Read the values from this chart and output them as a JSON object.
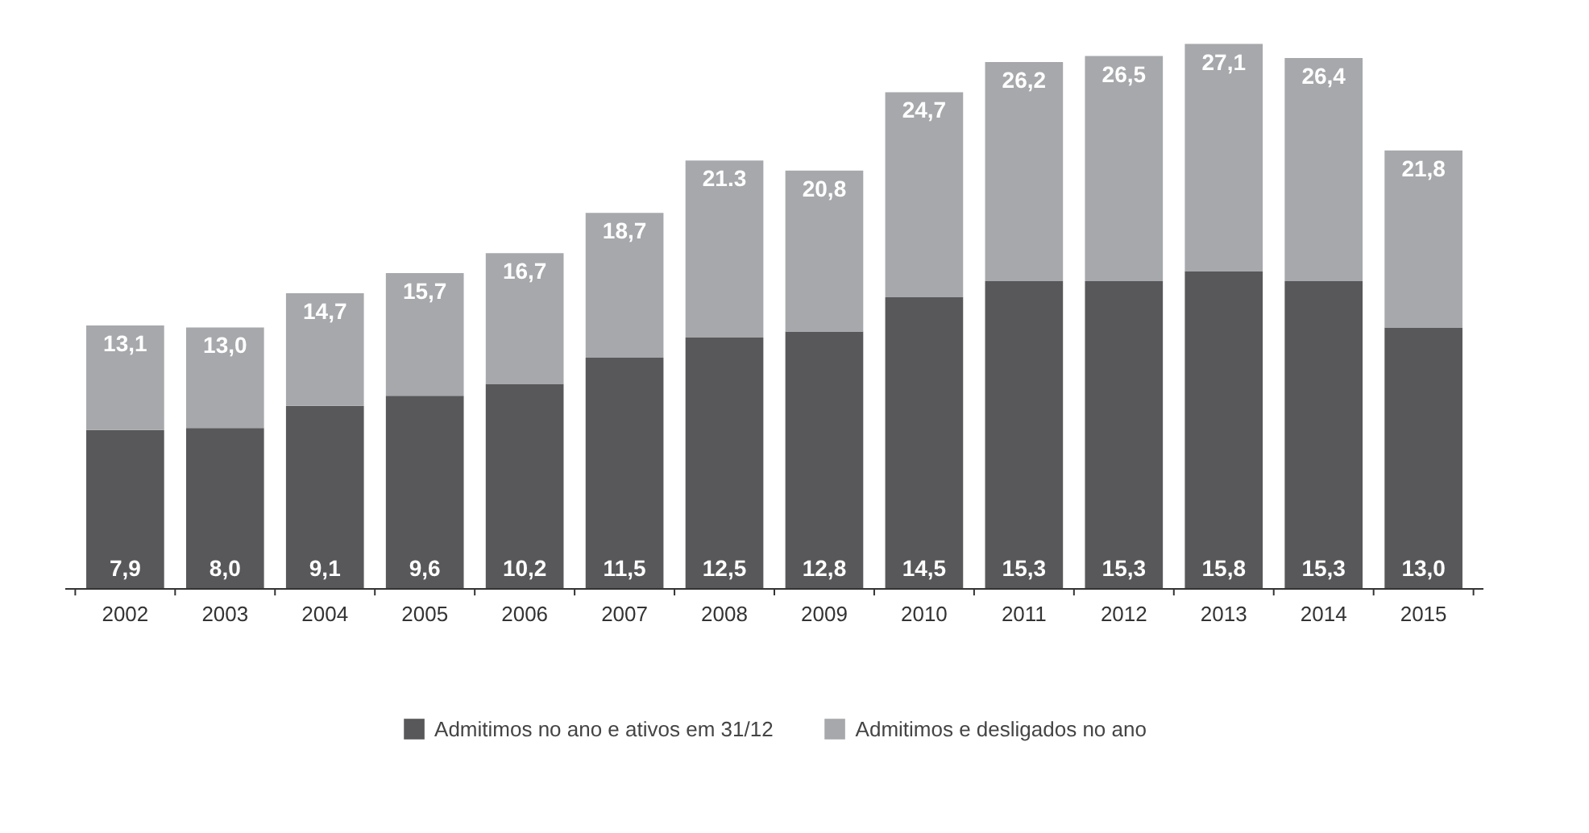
{
  "chart_data": {
    "type": "bar",
    "stacked": true,
    "categories": [
      "2002",
      "2003",
      "2004",
      "2005",
      "2006",
      "2007",
      "2008",
      "2009",
      "2010",
      "2011",
      "2012",
      "2013",
      "2014",
      "2015"
    ],
    "series": [
      {
        "name": "Admitimos no ano e ativos em 31/12",
        "color": "#58585a",
        "values": [
          7.9,
          8.0,
          9.1,
          9.6,
          10.2,
          11.5,
          12.5,
          12.8,
          14.5,
          15.3,
          15.3,
          15.8,
          15.3,
          13.0
        ],
        "value_labels": [
          "7,9",
          "8,0",
          "9,1",
          "9,6",
          "10,2",
          "11,5",
          "12,5",
          "12,8",
          "14,5",
          "15,3",
          "15,3",
          "15,8",
          "15,3",
          "13,0"
        ]
      },
      {
        "name": "Admitimos e desligados no ano",
        "color": "#a6a8ab",
        "values": [
          5.2,
          5.0,
          5.6,
          6.1,
          6.5,
          7.2,
          8.8,
          8.0,
          10.2,
          10.9,
          11.2,
          11.3,
          11.1,
          8.8
        ]
      }
    ],
    "totals": [
      "13,1",
      "13,0",
      "14,7",
      "15,7",
      "16,7",
      "18,7",
      "21.3",
      "20,8",
      "24,7",
      "26,2",
      "26,5",
      "27,1",
      "26,4",
      "21,8"
    ],
    "legend": "bottom"
  }
}
